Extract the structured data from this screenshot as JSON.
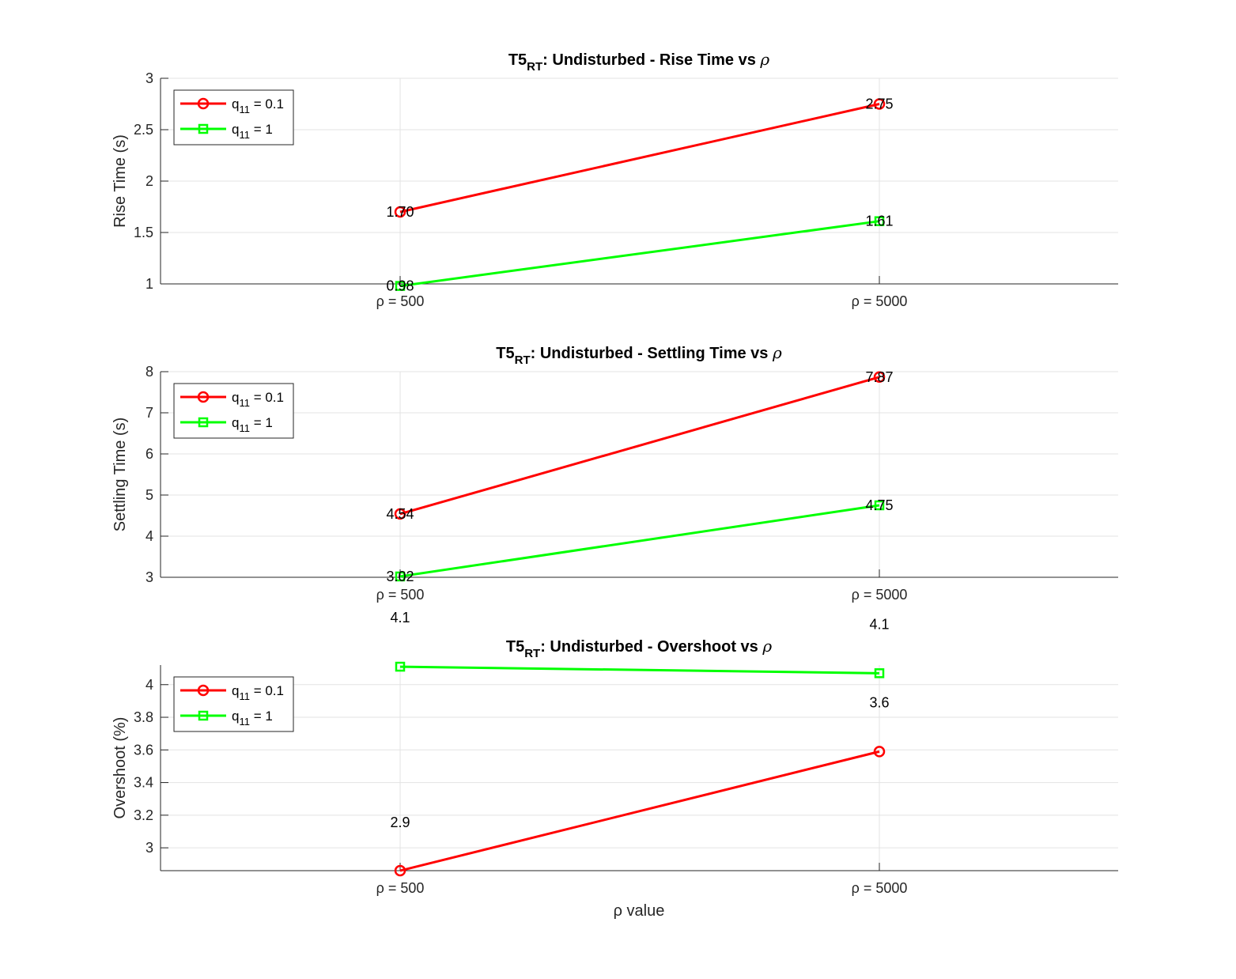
{
  "figure": {
    "background": "#ffffff",
    "xlabel": "ρ value"
  },
  "chart_data": [
    {
      "type": "line",
      "title_prefix": "T5",
      "title_sub": "RT",
      "title_rest": ": Undisturbed - Rise Time vs ",
      "title_symbol": "ρ",
      "ylabel": "Rise Time (s)",
      "categories": [
        "ρ = 500",
        "ρ = 5000"
      ],
      "ylim": [
        1,
        3
      ],
      "yticks": [
        "1",
        "1.5",
        "2",
        "2.5",
        "3"
      ],
      "grid": true,
      "legend_position": "top-left",
      "series": [
        {
          "name": "q11 = 0.1",
          "color": "#ff0000",
          "marker": "circle",
          "values": [
            1.7,
            2.75
          ],
          "labels": [
            "1.70",
            "2.75"
          ]
        },
        {
          "name": "q11 = 1",
          "color": "#00ff00",
          "marker": "square",
          "values": [
            0.98,
            1.61
          ],
          "labels": [
            "0.98",
            "1.61"
          ]
        }
      ]
    },
    {
      "type": "line",
      "title_prefix": "T5",
      "title_sub": "RT",
      "title_rest": ": Undisturbed - Settling Time vs ",
      "title_symbol": "ρ",
      "ylabel": "Settling Time (s)",
      "categories": [
        "ρ = 500",
        "ρ = 5000"
      ],
      "ylim": [
        3,
        8
      ],
      "yticks": [
        "3",
        "4",
        "5",
        "6",
        "7",
        "8"
      ],
      "grid": true,
      "legend_position": "top-left",
      "series": [
        {
          "name": "q11 = 0.1",
          "color": "#ff0000",
          "marker": "circle",
          "values": [
            4.54,
            7.87
          ],
          "labels": [
            "4.54",
            "7.87"
          ]
        },
        {
          "name": "q11 = 1",
          "color": "#00ff00",
          "marker": "square",
          "values": [
            3.02,
            4.75
          ],
          "labels": [
            "3.02",
            "4.75"
          ]
        }
      ]
    },
    {
      "type": "line",
      "title_prefix": "T5",
      "title_sub": "RT",
      "title_rest": ": Undisturbed - Overshoot vs ",
      "title_symbol": "ρ",
      "ylabel": "Overshoot (%)",
      "categories": [
        "ρ = 500",
        "ρ = 5000"
      ],
      "ylim": [
        2.86,
        4.12
      ],
      "yticks": [
        "3",
        "3.2",
        "3.4",
        "3.6",
        "3.8",
        "4"
      ],
      "grid": true,
      "legend_position": "top-left",
      "series": [
        {
          "name": "q11 = 0.1",
          "color": "#ff0000",
          "marker": "circle",
          "values": [
            2.86,
            3.59
          ],
          "labels": [
            "2.9",
            "3.6"
          ]
        },
        {
          "name": "q11 = 1",
          "color": "#00ff00",
          "marker": "square",
          "values": [
            4.11,
            4.07
          ],
          "labels": [
            "4.1",
            "4.1"
          ]
        }
      ]
    }
  ]
}
